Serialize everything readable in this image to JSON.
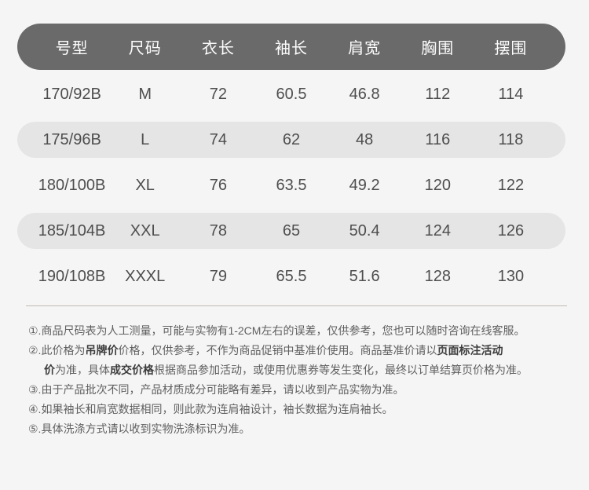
{
  "size_table": {
    "columns": [
      "号型",
      "尺码",
      "衣长",
      "袖长",
      "肩宽",
      "胸围",
      "摆围"
    ],
    "rows": [
      [
        "170/92B",
        "M",
        "72",
        "60.5",
        "46.8",
        "112",
        "114"
      ],
      [
        "175/96B",
        "L",
        "74",
        "62",
        "48",
        "116",
        "118"
      ],
      [
        "180/100B",
        "XL",
        "76",
        "63.5",
        "49.2",
        "120",
        "122"
      ],
      [
        "185/104B",
        "XXL",
        "78",
        "65",
        "50.4",
        "124",
        "126"
      ],
      [
        "190/108B",
        "XXXL",
        "79",
        "65.5",
        "51.6",
        "128",
        "130"
      ]
    ]
  },
  "notes": [
    {
      "indent": false,
      "segments": [
        {
          "text": "①.商品尺码表为人工测量，可能与实物有1-2CM左右的误差，仅供参考，您也可以随时咨询在线客服。",
          "bold": false
        }
      ]
    },
    {
      "indent": false,
      "segments": [
        {
          "text": "②.此价格为",
          "bold": false
        },
        {
          "text": "吊牌价",
          "bold": true
        },
        {
          "text": "价格，仅供参考，不作为商品促销中基准价使用。商品基准价请以",
          "bold": false
        },
        {
          "text": "页面标注活动",
          "bold": true
        }
      ]
    },
    {
      "indent": true,
      "segments": [
        {
          "text": "价",
          "bold": true
        },
        {
          "text": "为准，具体",
          "bold": false
        },
        {
          "text": "成交价格",
          "bold": true
        },
        {
          "text": "根据商品参加活动，或使用优惠券等发生变化，最终以订单结算页价格为准。",
          "bold": false
        }
      ]
    },
    {
      "indent": false,
      "segments": [
        {
          "text": "③.由于产品批次不同，产品材质成分可能略有差异，请以收到产品实物为准。",
          "bold": false
        }
      ]
    },
    {
      "indent": false,
      "segments": [
        {
          "text": "④.如果袖长和肩宽数据相同，则此款为连肩袖设计，袖长数据为连肩袖长。",
          "bold": false
        }
      ]
    },
    {
      "indent": false,
      "segments": [
        {
          "text": "⑤.具体洗涤方式请以收到实物洗涤标识为准。",
          "bold": false
        }
      ]
    }
  ],
  "colors": {
    "header_bg": "#6a6a6a",
    "header_text": "#fdfdfd",
    "stripe": "#e5e5e6",
    "page_bg": "#f5f5f6",
    "data_text": "#4e4e4e",
    "divider": "#c3bbb1",
    "note_text": "#5f5f5f",
    "note_bold": "#3d3d3d"
  }
}
